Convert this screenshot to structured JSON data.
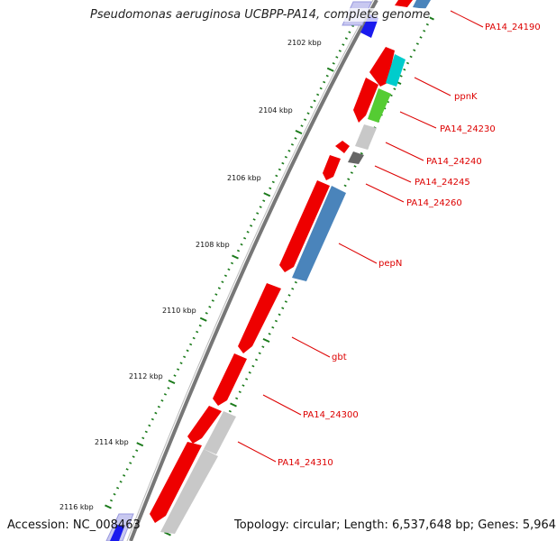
{
  "title": "Pseudomonas aeruginosa UCBPP-PA14, complete genome",
  "footer": {
    "accession": "Accession: NC_008463",
    "topology": "Topology: circular; Length: 6,537,648 bp; Genes: 5,964"
  },
  "ticks": [
    "2102 kbp",
    "2104 kbp",
    "2106 kbp",
    "2108 kbp",
    "2110 kbp",
    "2112 kbp",
    "2114 kbp",
    "2116 kbp"
  ],
  "gene_labels": [
    "PA14_24190",
    "ppnK",
    "PA14_24230",
    "PA14_24240",
    "PA14_24245",
    "PA14_24260",
    "pepN",
    "gbt",
    "PA14_24300",
    "PA14_24310"
  ],
  "colors": {
    "backbone": "#777777",
    "cds": "#ee0000",
    "gene_label": "#dd0000",
    "tick": "#1a7a1a",
    "teal": "#00cccc",
    "green": "#55cc33",
    "steel_blue": "#4a84bb",
    "blue": "#1a1aee",
    "gray": "#c8c8c8",
    "dark_gray": "#666666"
  }
}
